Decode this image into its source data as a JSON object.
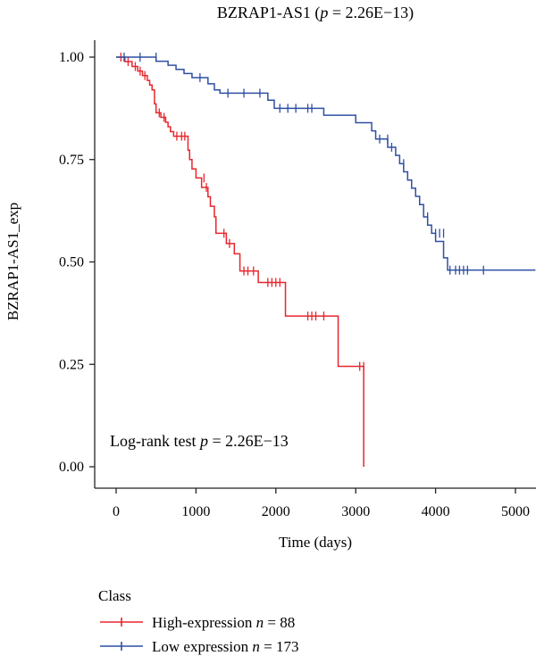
{
  "chart_data": {
    "type": "line",
    "title": "BZRAP1-AS1 (p = 2.26E−13)",
    "title_parts": {
      "name": "BZRAP1-AS1 (",
      "p_symbol": "p",
      "value": " = 2.26E−13)"
    },
    "xlabel": "Time (days)",
    "ylabel": "BZRAP1-AS1_exp",
    "xlim": [
      -100,
      5250
    ],
    "ylim": [
      -0.05,
      1.03
    ],
    "x_ticks": [
      0,
      1000,
      2000,
      3000,
      4000,
      5000
    ],
    "x_tick_labels": [
      "0",
      "1000",
      "2000",
      "3000",
      "4000",
      "5000"
    ],
    "y_ticks": [
      0.0,
      0.25,
      0.5,
      0.75,
      1.0
    ],
    "y_tick_labels": [
      "0.00",
      "0.25",
      "0.50",
      "0.75",
      "1.00"
    ],
    "grid": false,
    "annotation": {
      "text": "Log-rank test ",
      "p_symbol": "p",
      "value": " = 2.26E−13"
    },
    "legend": {
      "title": "Class",
      "placement": "bottom-left",
      "entries": [
        {
          "text": "High-expression ",
          "n_symbol": "n",
          "value": " = 88"
        },
        {
          "text": "Low expression ",
          "n_symbol": "n",
          "value": " = 173"
        }
      ]
    },
    "series": [
      {
        "name": "High-expression",
        "color": "#e8262d",
        "steps": [
          [
            0,
            1.0
          ],
          [
            110,
            0.989
          ],
          [
            200,
            0.977
          ],
          [
            270,
            0.966
          ],
          [
            330,
            0.955
          ],
          [
            390,
            0.943
          ],
          [
            420,
            0.932
          ],
          [
            450,
            0.92
          ],
          [
            480,
            0.886
          ],
          [
            500,
            0.864
          ],
          [
            560,
            0.853
          ],
          [
            620,
            0.841
          ],
          [
            650,
            0.83
          ],
          [
            680,
            0.818
          ],
          [
            720,
            0.807
          ],
          [
            900,
            0.773
          ],
          [
            920,
            0.75
          ],
          [
            950,
            0.727
          ],
          [
            1000,
            0.705
          ],
          [
            1070,
            0.682
          ],
          [
            1150,
            0.659
          ],
          [
            1180,
            0.636
          ],
          [
            1230,
            0.61
          ],
          [
            1250,
            0.57
          ],
          [
            1380,
            0.545
          ],
          [
            1480,
            0.52
          ],
          [
            1550,
            0.478
          ],
          [
            1780,
            0.45
          ],
          [
            2120,
            0.368
          ],
          [
            2780,
            0.245
          ],
          [
            3100,
            0.0
          ]
        ],
        "end_x": 3100,
        "censored": [
          [
            60,
            1.0
          ],
          [
            150,
            0.989
          ],
          [
            240,
            0.977
          ],
          [
            300,
            0.966
          ],
          [
            360,
            0.955
          ],
          [
            540,
            0.864
          ],
          [
            600,
            0.853
          ],
          [
            760,
            0.807
          ],
          [
            820,
            0.807
          ],
          [
            860,
            0.807
          ],
          [
            1100,
            0.705
          ],
          [
            1130,
            0.682
          ],
          [
            1350,
            0.57
          ],
          [
            1420,
            0.545
          ],
          [
            1600,
            0.478
          ],
          [
            1650,
            0.478
          ],
          [
            1720,
            0.478
          ],
          [
            1900,
            0.45
          ],
          [
            1950,
            0.45
          ],
          [
            2000,
            0.45
          ],
          [
            2050,
            0.45
          ],
          [
            2400,
            0.368
          ],
          [
            2450,
            0.368
          ],
          [
            2500,
            0.368
          ],
          [
            2600,
            0.368
          ],
          [
            3050,
            0.245
          ],
          [
            3100,
            0.245
          ]
        ]
      },
      {
        "name": "Low expression",
        "color": "#2e4fa3",
        "steps": [
          [
            0,
            1.0
          ],
          [
            500,
            0.99
          ],
          [
            650,
            0.98
          ],
          [
            750,
            0.97
          ],
          [
            850,
            0.96
          ],
          [
            950,
            0.95
          ],
          [
            1150,
            0.935
          ],
          [
            1230,
            0.92
          ],
          [
            1300,
            0.912
          ],
          [
            1900,
            0.895
          ],
          [
            1980,
            0.875
          ],
          [
            2600,
            0.858
          ],
          [
            3000,
            0.84
          ],
          [
            3200,
            0.82
          ],
          [
            3250,
            0.8
          ],
          [
            3400,
            0.78
          ],
          [
            3500,
            0.76
          ],
          [
            3550,
            0.74
          ],
          [
            3600,
            0.72
          ],
          [
            3650,
            0.7
          ],
          [
            3700,
            0.68
          ],
          [
            3750,
            0.66
          ],
          [
            3800,
            0.64
          ],
          [
            3850,
            0.61
          ],
          [
            3900,
            0.59
          ],
          [
            3950,
            0.57
          ],
          [
            4000,
            0.55
          ],
          [
            4100,
            0.51
          ],
          [
            4150,
            0.48
          ]
        ],
        "end_x": 5250,
        "censored": [
          [
            100,
            1.0
          ],
          [
            300,
            1.0
          ],
          [
            500,
            1.0
          ],
          [
            1050,
            0.95
          ],
          [
            1400,
            0.912
          ],
          [
            1600,
            0.912
          ],
          [
            1800,
            0.912
          ],
          [
            2050,
            0.875
          ],
          [
            2150,
            0.875
          ],
          [
            2250,
            0.875
          ],
          [
            2400,
            0.875
          ],
          [
            2450,
            0.875
          ],
          [
            3300,
            0.8
          ],
          [
            3400,
            0.8
          ],
          [
            3450,
            0.78
          ],
          [
            3600,
            0.74
          ],
          [
            3900,
            0.61
          ],
          [
            4000,
            0.57
          ],
          [
            4050,
            0.57
          ],
          [
            4100,
            0.57
          ],
          [
            4180,
            0.48
          ],
          [
            4250,
            0.48
          ],
          [
            4300,
            0.48
          ],
          [
            4350,
            0.48
          ],
          [
            4400,
            0.48
          ],
          [
            4600,
            0.48
          ]
        ]
      }
    ]
  }
}
